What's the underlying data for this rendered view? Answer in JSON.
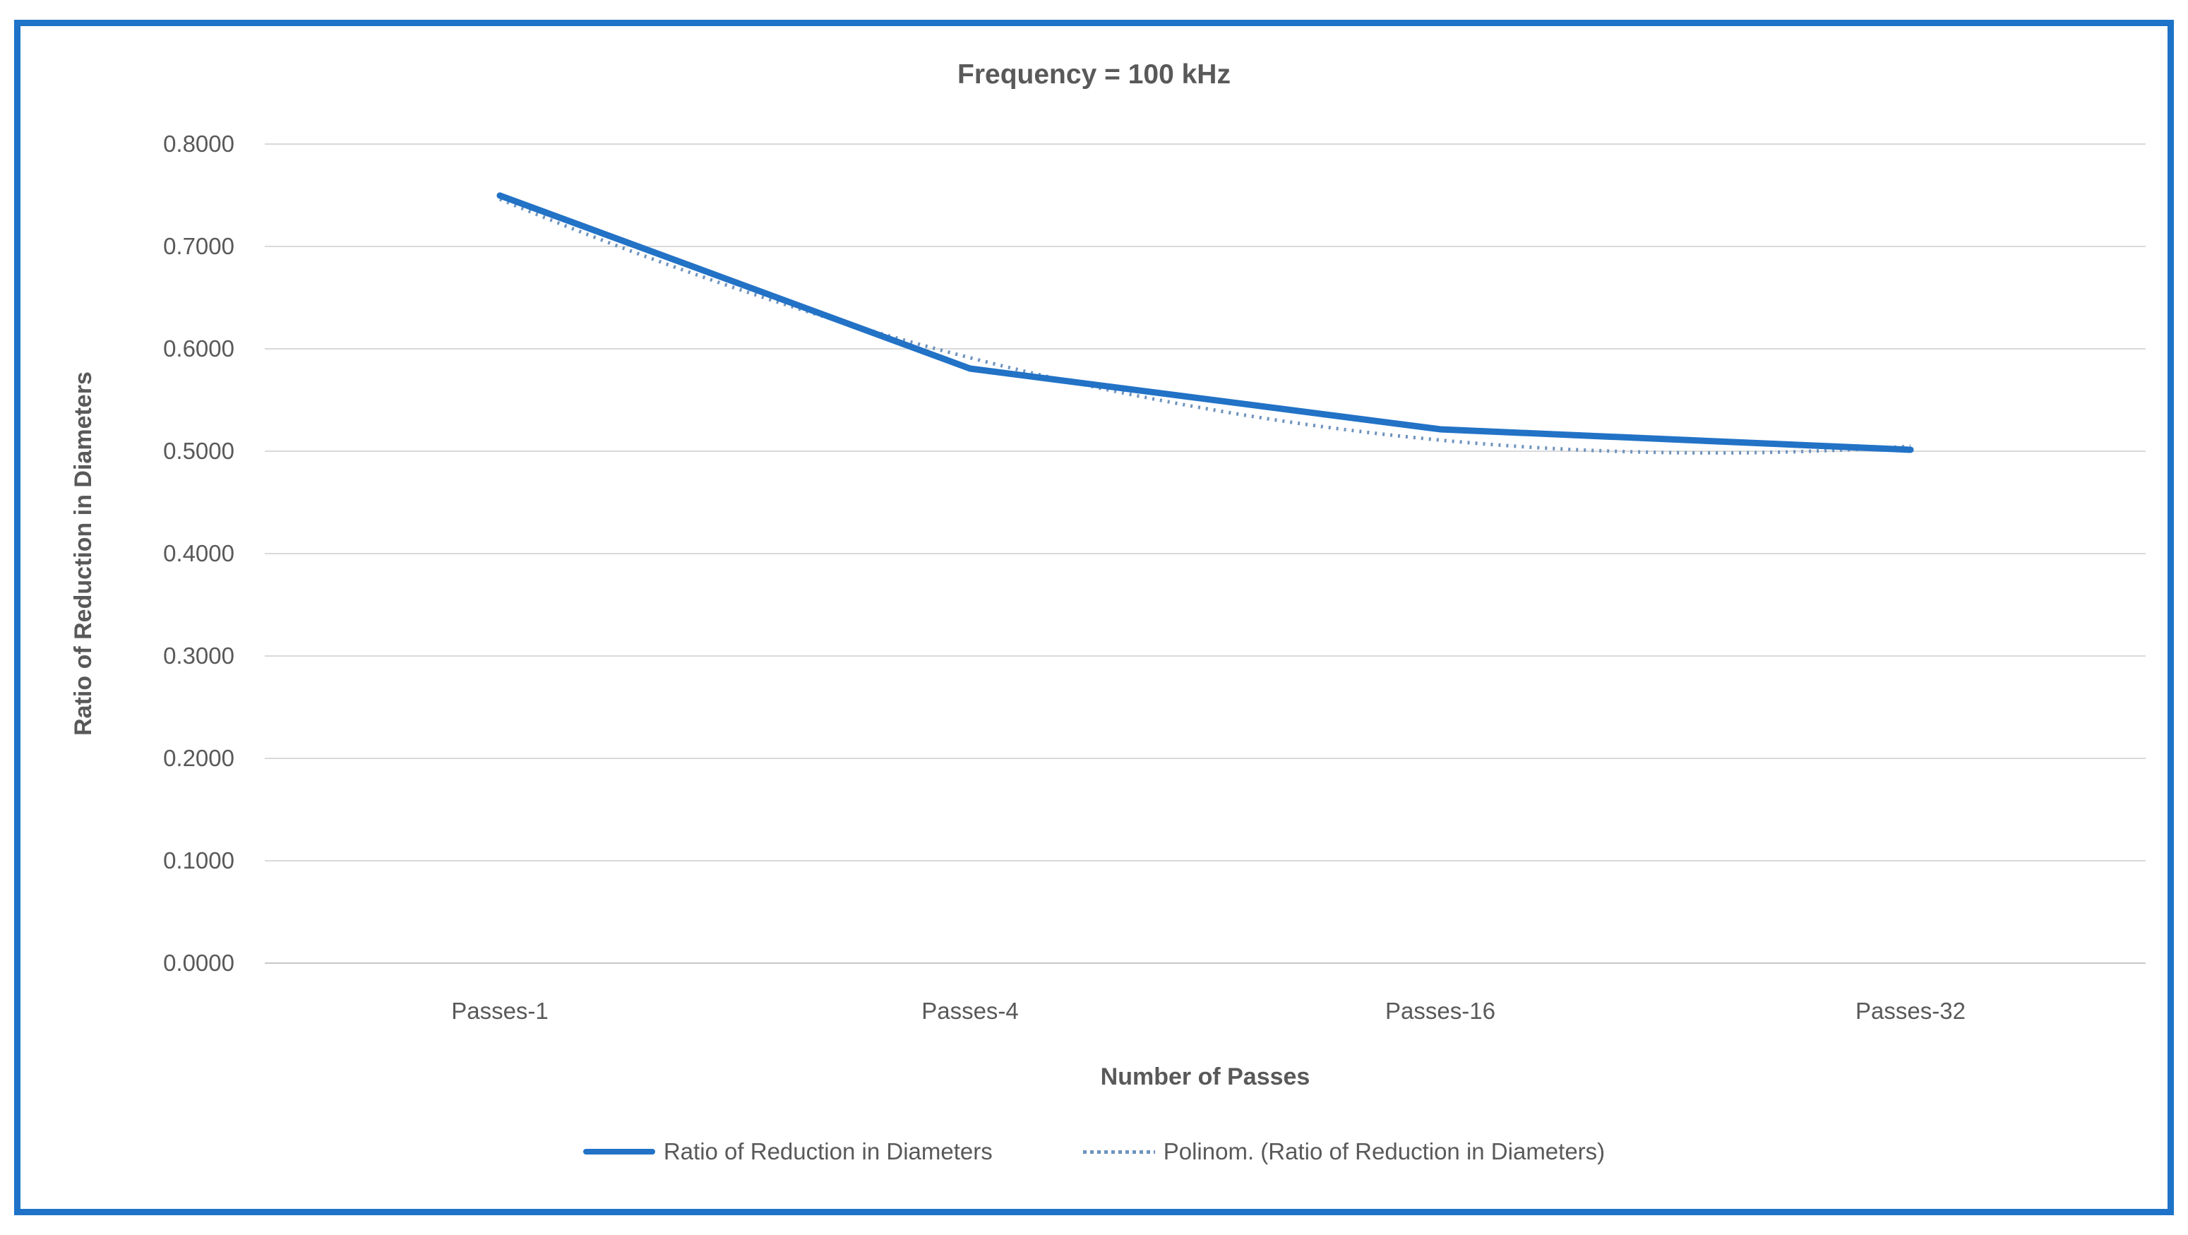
{
  "chart_data": {
    "type": "line",
    "title": "Frequency = 100 kHz",
    "xlabel": "Number of Passes",
    "ylabel": "Ratio of Reduction in Diameters",
    "categories": [
      "Passes-1",
      "Passes-4",
      "Passes-16",
      "Passes-32"
    ],
    "series": [
      {
        "name": "Ratio of Reduction in Diameters",
        "style": "solid",
        "values": [
          0.7497,
          0.5807,
          0.5214,
          0.5014
        ]
      }
    ],
    "trendline": {
      "name": "Polinom. (Ratio of Reduction in Diameters)",
      "type": "polynomial",
      "order": 2,
      "of_series": "Ratio of Reduction in Diameters",
      "style": "dotted"
    },
    "y_axis": {
      "min": 0.0,
      "max": 0.8,
      "tick_step": 0.1,
      "tick_labels": [
        "0.8000",
        "0.7000",
        "0.6000",
        "0.5000",
        "0.4000",
        "0.3000",
        "0.2000",
        "0.1000",
        "0.0000"
      ]
    },
    "x_axis": {
      "tick_labels": [
        "Passes-1",
        "Passes-4",
        "Passes-16",
        "Passes-32"
      ]
    },
    "legend": {
      "position": "bottom",
      "items": [
        {
          "label": "Ratio of Reduction in Diameters",
          "swatch": "solid-line"
        },
        {
          "label": "Polinom. (Ratio of Reduction in Diameters)",
          "swatch": "dotted-line"
        }
      ]
    },
    "grid": true,
    "colors": {
      "series": "#2272C6",
      "trendline": "#6E93BE",
      "grid": "#D9D9D9",
      "axisline": "#C9C9C9",
      "text": "#595959",
      "border": "#1E73C8",
      "background": "#FFFFFF"
    }
  }
}
